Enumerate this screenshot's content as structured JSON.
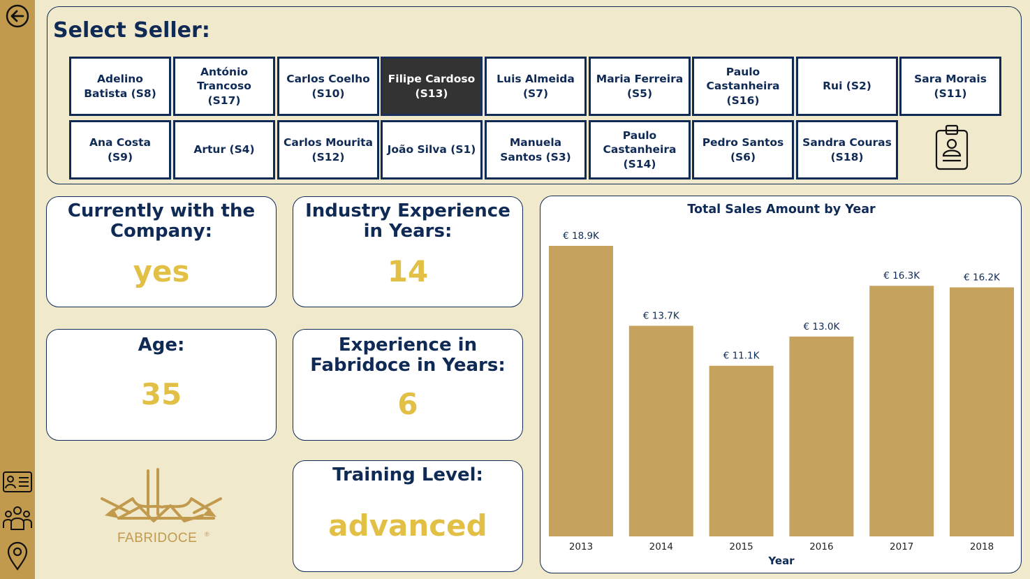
{
  "selector": {
    "title": "Select Seller:",
    "sellers": [
      {
        "label": "Adelino Batista (S8)",
        "selected": false
      },
      {
        "label": "António Trancoso (S17)",
        "selected": false
      },
      {
        "label": "Carlos Coelho (S10)",
        "selected": false
      },
      {
        "label": "Filipe Cardoso (S13)",
        "selected": true
      },
      {
        "label": "Luis Almeida (S7)",
        "selected": false
      },
      {
        "label": "Maria Ferreira (S5)",
        "selected": false
      },
      {
        "label": "Paulo Castanheira (S16)",
        "selected": false
      },
      {
        "label": "Rui (S2)",
        "selected": false
      },
      {
        "label": "Sara Morais (S11)",
        "selected": false
      },
      {
        "label": "Ana Costa (S9)",
        "selected": false
      },
      {
        "label": "Artur (S4)",
        "selected": false
      },
      {
        "label": "Carlos Mourita (S12)",
        "selected": false
      },
      {
        "label": "João Silva (S1)",
        "selected": false
      },
      {
        "label": "Manuela Santos (S3)",
        "selected": false
      },
      {
        "label": "Paulo Castanheira (S14)",
        "selected": false
      },
      {
        "label": "Pedro Santos (S6)",
        "selected": false
      },
      {
        "label": "Sandra Couras (S18)",
        "selected": false
      }
    ]
  },
  "kpis": {
    "company": {
      "label": "Currently with the Company:",
      "value": "yes"
    },
    "industry": {
      "label": "Industry Experience in Years:",
      "value": "14"
    },
    "age": {
      "label": "Age:",
      "value": "35"
    },
    "fabridoce": {
      "label": "Experience in Fabridoce in Years:",
      "value": "6"
    },
    "training": {
      "label": "Training Level:",
      "value": "advanced"
    }
  },
  "logo": {
    "text": "FABRIDOCE"
  },
  "icons": {
    "back": "back-arrow-icon",
    "sidebar": [
      "id-card-icon",
      "people-group-icon",
      "location-pin-icon"
    ],
    "selector": "clipboard-badge-icon"
  },
  "colors": {
    "accent": "#c19a4e",
    "navy": "#0f2a55",
    "value_yellow": "#e2bf45",
    "bar": "#c5a35f",
    "selected": "#333333"
  },
  "chart_data": {
    "type": "bar",
    "title": "Total Sales Amount by Year",
    "xlabel": "Year",
    "ylabel": "",
    "categories": [
      "2013",
      "2014",
      "2015",
      "2016",
      "2017",
      "2018"
    ],
    "values": [
      18900,
      13700,
      11100,
      13000,
      16300,
      16200
    ],
    "data_labels": [
      "€ 18.9K",
      "€ 13.7K",
      "€ 11.1K",
      "€ 13.0K",
      "€ 16.3K",
      "€ 16.2K"
    ],
    "ylim": [
      0,
      18900
    ],
    "grid": false,
    "legend": "none"
  }
}
